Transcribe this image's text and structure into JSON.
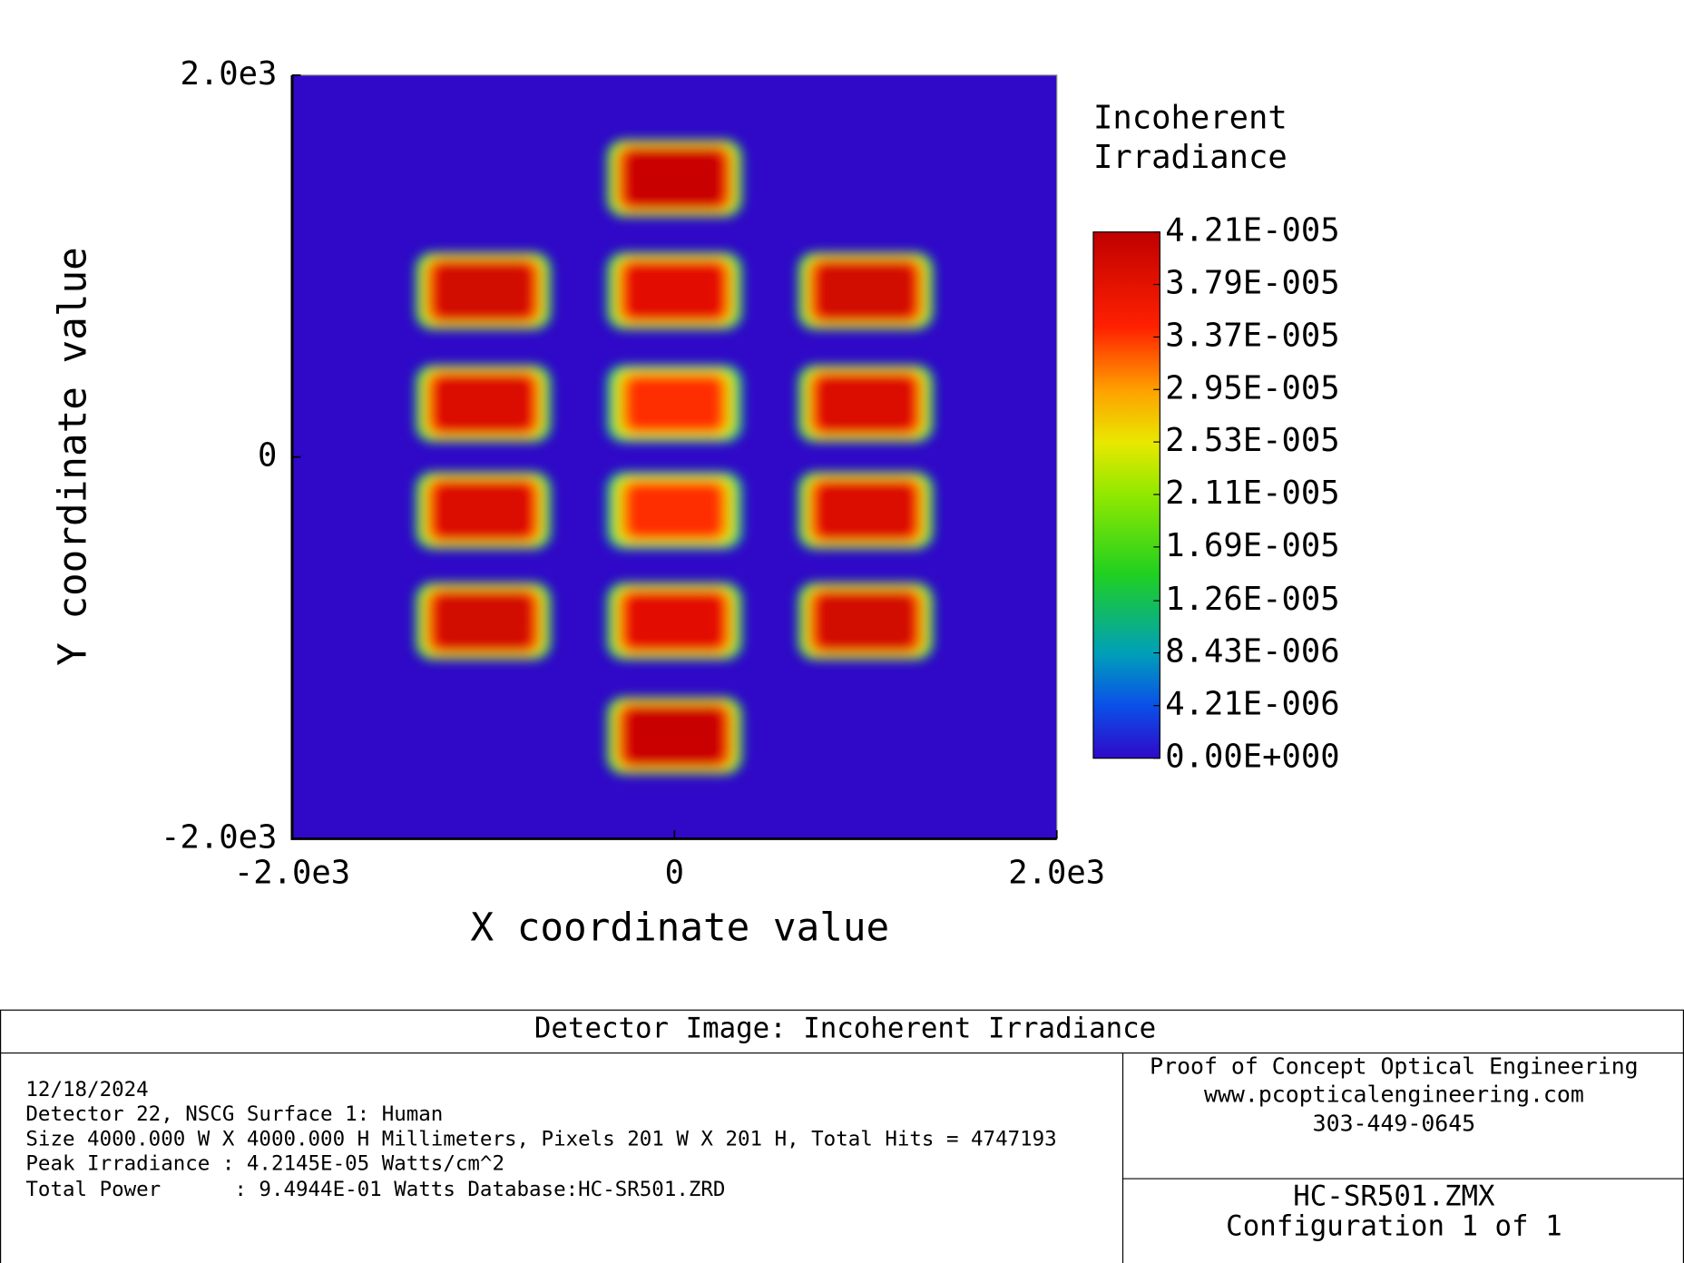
{
  "chart_data": {
    "type": "heatmap",
    "xlabel": "X coordinate value",
    "ylabel": "Y coordinate value",
    "xlim": [
      -2000,
      2000
    ],
    "ylim": [
      -2000,
      2000
    ],
    "xticks": [
      {
        "value": -2000,
        "label": "-2.0e3"
      },
      0,
      {
        "value": 2000,
        "label": "2.0e3"
      }
    ],
    "yticks": [
      {
        "value": -2000,
        "label": "-2.0e3"
      },
      0,
      {
        "value": 2000,
        "label": "2.0e3"
      }
    ],
    "colorbar_title": [
      "Incoherent",
      "Irradiance"
    ],
    "clim": [
      0,
      4.21e-05
    ],
    "colorbar_ticks": [
      {
        "value": 0,
        "label": "0.00E+000"
      },
      {
        "value": 4.21e-06,
        "label": "4.21E-006"
      },
      {
        "value": 8.43e-06,
        "label": "8.43E-006"
      },
      {
        "value": 1.26e-05,
        "label": "1.26E-005"
      },
      {
        "value": 1.69e-05,
        "label": "1.69E-005"
      },
      {
        "value": 2.11e-05,
        "label": "2.11E-005"
      },
      {
        "value": 2.53e-05,
        "label": "2.53E-005"
      },
      {
        "value": 2.95e-05,
        "label": "2.95E-005"
      },
      {
        "value": 3.37e-05,
        "label": "3.37E-005"
      },
      {
        "value": 3.79e-05,
        "label": "3.79E-005"
      },
      {
        "value": 4.21e-05,
        "label": "4.21E-005"
      }
    ],
    "colormap": [
      [
        0,
        "#3008c8"
      ],
      [
        0.1,
        "#0a50e8"
      ],
      [
        0.2,
        "#00a0b8"
      ],
      [
        0.35,
        "#20d020"
      ],
      [
        0.5,
        "#90e800"
      ],
      [
        0.6,
        "#e8e800"
      ],
      [
        0.7,
        "#ffa000"
      ],
      [
        0.82,
        "#ff2000"
      ],
      [
        1,
        "#c00000"
      ]
    ],
    "spot_width": 630,
    "spot_height": 360,
    "spots": [
      {
        "x": 0,
        "y": 1460,
        "value": 4.1e-05
      },
      {
        "x": -1000,
        "y": 870,
        "value": 4e-05
      },
      {
        "x": 0,
        "y": 870,
        "value": 3.8e-05
      },
      {
        "x": 1000,
        "y": 870,
        "value": 4e-05
      },
      {
        "x": -1000,
        "y": 280,
        "value": 3.9e-05
      },
      {
        "x": 0,
        "y": 280,
        "value": 3.4e-05
      },
      {
        "x": 1000,
        "y": 280,
        "value": 3.9e-05
      },
      {
        "x": -1000,
        "y": -280,
        "value": 3.9e-05
      },
      {
        "x": 0,
        "y": -280,
        "value": 3.4e-05
      },
      {
        "x": 1000,
        "y": -280,
        "value": 3.9e-05
      },
      {
        "x": -1000,
        "y": -860,
        "value": 4e-05
      },
      {
        "x": 0,
        "y": -860,
        "value": 3.8e-05
      },
      {
        "x": 1000,
        "y": -860,
        "value": 4e-05
      },
      {
        "x": 0,
        "y": -1460,
        "value": 4.1e-05
      }
    ]
  },
  "footer": {
    "title": "Detector Image: Incoherent Irradiance",
    "info": [
      "12/18/2024",
      "Detector 22, NSCG Surface 1: Human",
      "Size 4000.000 W X 4000.000 H Millimeters, Pixels 201 W X 201 H, Total Hits = 4747193",
      "Peak Irradiance : 4.2145E-05 Watts/cm^2",
      "Total Power      : 9.4944E-01 Watts Database:HC-SR501.ZRD"
    ],
    "company": [
      "Proof of Concept Optical Engineering",
      "www.pcopticalengineering.com",
      "303-449-0645"
    ],
    "file": [
      "HC-SR501.ZMX",
      "Configuration 1 of 1"
    ]
  }
}
